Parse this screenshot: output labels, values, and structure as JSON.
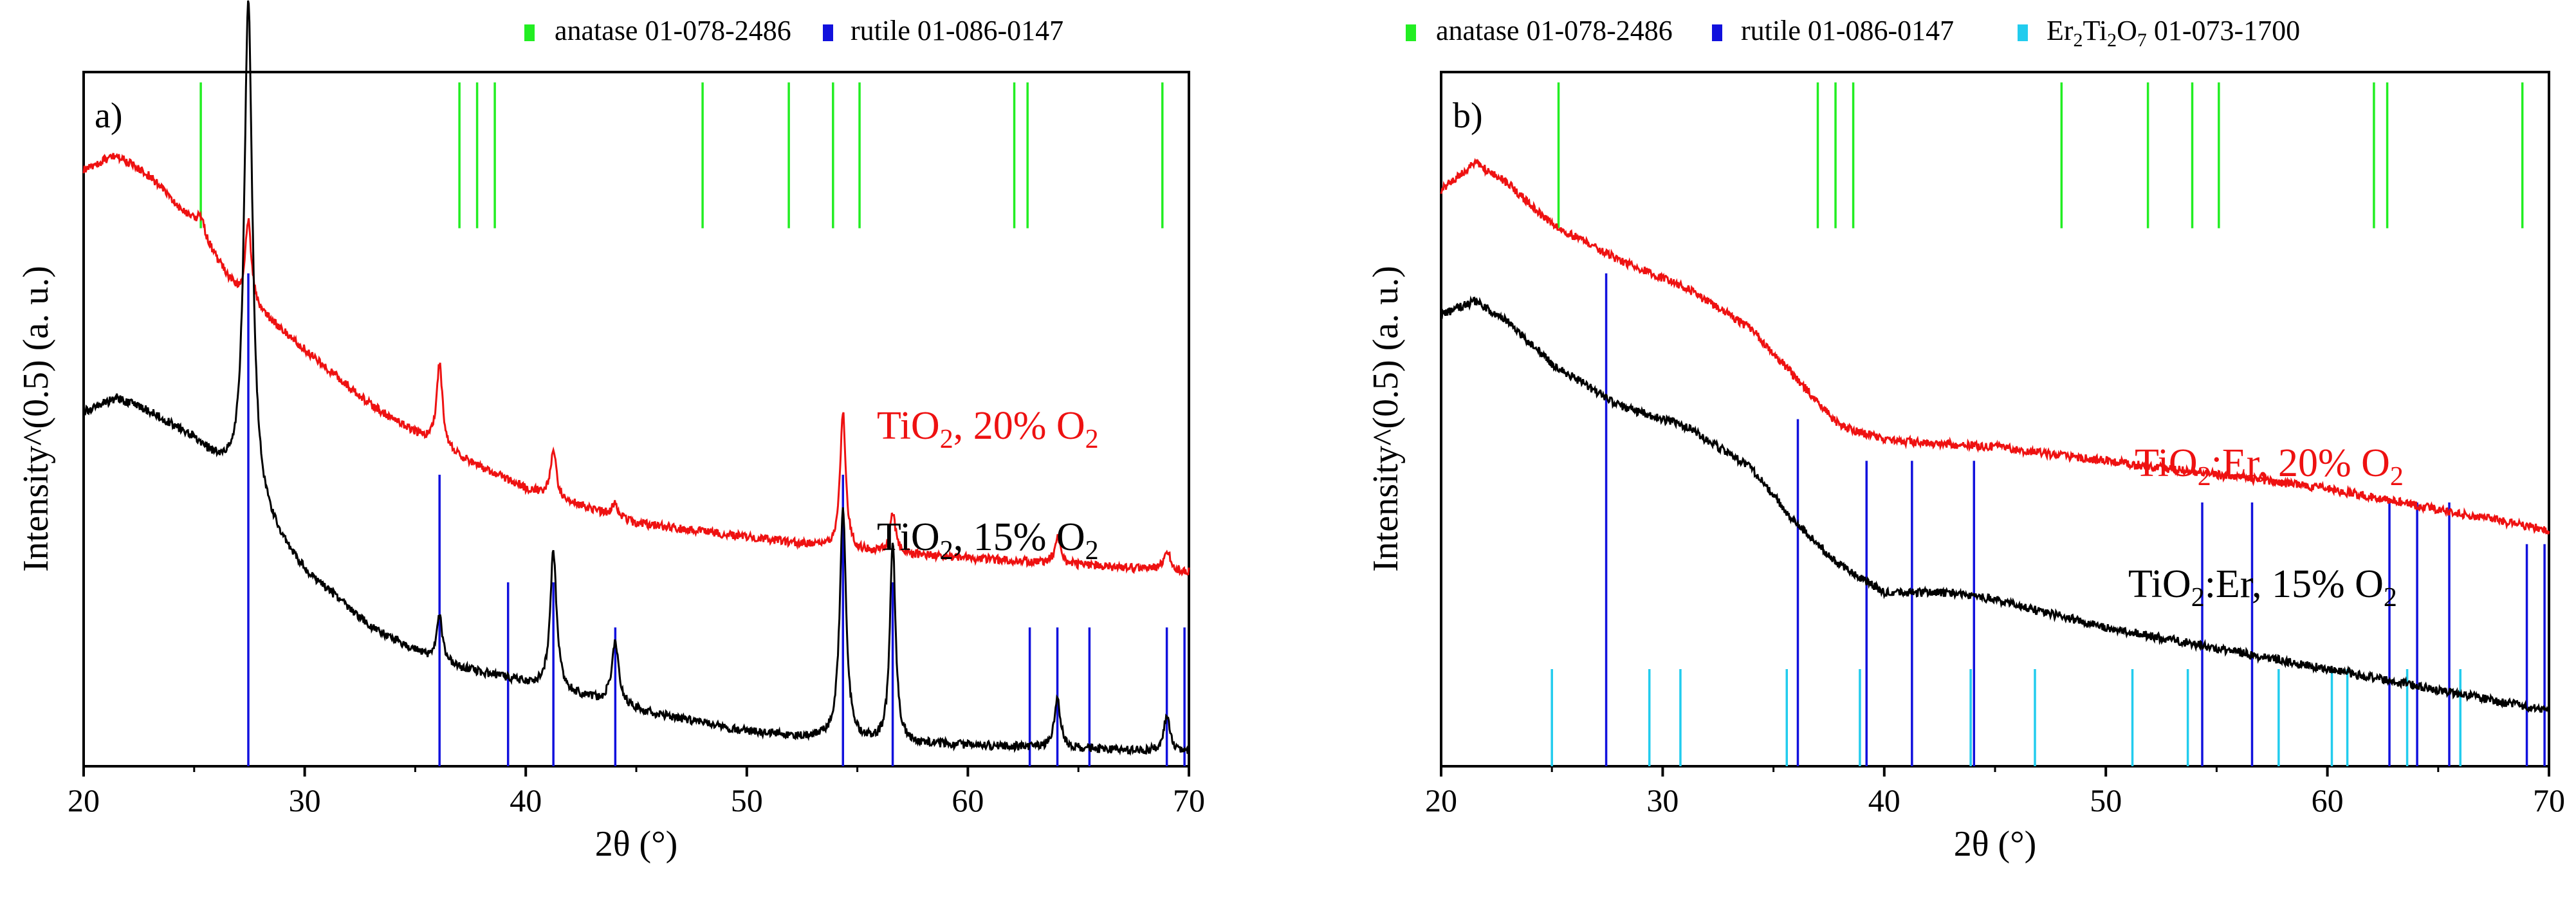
{
  "colors": {
    "anatase": "#22ee22",
    "rutile": "#1111dd",
    "er2ti2o7": "#22ccee",
    "red_series": "#ee1111",
    "black_series": "#000000"
  },
  "chart_data": [
    {
      "type": "line",
      "panel_label": "a)",
      "xlabel": "2θ (°)",
      "ylabel": "Intensity^(0.5) (a. u.)",
      "xlim": [
        20,
        70
      ],
      "ylim": [
        0,
        1
      ],
      "x_ticks": [
        20,
        30,
        40,
        50,
        60,
        70
      ],
      "legend": [
        {
          "name": "anatase 01-078-2486",
          "color": "#22ee22"
        },
        {
          "name": "rutile 01-086-0147",
          "color": "#1111dd"
        }
      ],
      "reference_lines": {
        "anatase": {
          "positions": [
            25.3,
            37.0,
            37.8,
            38.6,
            48.0,
            51.9,
            53.9,
            55.1,
            62.1,
            62.7,
            68.8
          ],
          "ymin": 0.775,
          "ymax": 0.985
        },
        "rutile": {
          "positions": [
            27.45,
            36.1,
            39.2,
            41.25,
            44.05,
            54.35,
            56.6,
            62.8,
            64.05,
            65.5,
            69.0,
            69.8
          ],
          "heights": [
            0.71,
            0.42,
            0.265,
            0.265,
            0.2,
            0.42,
            0.265,
            0.2,
            0.2,
            0.2,
            0.2,
            0.2
          ]
        }
      },
      "series": [
        {
          "name": "TiO2, 20% O2",
          "label_main": "TiO",
          "label_sub1": "2",
          "label_mid": ", 20% O",
          "label_sub2": "2",
          "color": "#ee1111",
          "baseline": [
            [
              20,
              0.86
            ],
            [
              21.5,
              0.88
            ],
            [
              23,
              0.85
            ],
            [
              25,
              0.78
            ],
            [
              27,
              0.68
            ],
            [
              30,
              0.6
            ],
            [
              33,
              0.52
            ],
            [
              36,
              0.46
            ],
            [
              40,
              0.4
            ],
            [
              45,
              0.35
            ],
            [
              50,
              0.33
            ],
            [
              55,
              0.31
            ],
            [
              60,
              0.3
            ],
            [
              65,
              0.29
            ],
            [
              70,
              0.28
            ]
          ],
          "peaks": [
            [
              25.3,
              0.025,
              0.5
            ],
            [
              27.45,
              0.12,
              0.33
            ],
            [
              36.1,
              0.12,
              0.33
            ],
            [
              41.25,
              0.07,
              0.3
            ],
            [
              44.05,
              0.02,
              0.3
            ],
            [
              54.35,
              0.2,
              0.3
            ],
            [
              56.6,
              0.06,
              0.3
            ],
            [
              64.05,
              0.04,
              0.3
            ],
            [
              69.0,
              0.03,
              0.35
            ]
          ]
        },
        {
          "name": "TiO2, 15% O2",
          "label_main": "TiO",
          "label_sub1": "2",
          "label_mid": ", 15% O",
          "label_sub2": "2",
          "color": "#000000",
          "baseline": [
            [
              20,
              0.51
            ],
            [
              21.5,
              0.53
            ],
            [
              23,
              0.51
            ],
            [
              25,
              0.47
            ],
            [
              26.5,
              0.42
            ],
            [
              30,
              0.28
            ],
            [
              33,
              0.2
            ],
            [
              36,
              0.15
            ],
            [
              40,
              0.12
            ],
            [
              45,
              0.08
            ],
            [
              50,
              0.05
            ],
            [
              55,
              0.035
            ],
            [
              60,
              0.03
            ],
            [
              65,
              0.025
            ],
            [
              70,
              0.02
            ]
          ],
          "peaks": [
            [
              27.45,
              0.72,
              0.45
            ],
            [
              36.1,
              0.07,
              0.3
            ],
            [
              41.25,
              0.2,
              0.35
            ],
            [
              44.05,
              0.09,
              0.4
            ],
            [
              54.35,
              0.33,
              0.35
            ],
            [
              56.6,
              0.29,
              0.3
            ],
            [
              64.05,
              0.07,
              0.35
            ],
            [
              69.0,
              0.05,
              0.35
            ]
          ]
        }
      ]
    },
    {
      "type": "line",
      "panel_label": "b)",
      "xlabel": "2θ (°)",
      "ylabel": "Intensity^(0.5) (a. u.)",
      "xlim": [
        20,
        70
      ],
      "ylim": [
        0,
        1
      ],
      "x_ticks": [
        20,
        30,
        40,
        50,
        60,
        70
      ],
      "legend": [
        {
          "name": "anatase 01-078-2486",
          "color": "#22ee22"
        },
        {
          "name": "rutile 01-086-0147",
          "color": "#1111dd"
        },
        {
          "name": "Er2Ti2O7 01-073-1700",
          "label_main": "Er",
          "label_sub1": "2",
          "label_mid": "Ti",
          "label_sub2": "2",
          "label_mid2": "O",
          "label_sub3": "7",
          "label_tail": " 01-073-1700",
          "color": "#22ccee"
        }
      ],
      "reference_lines": {
        "anatase": {
          "positions": [
            25.3,
            37.0,
            37.8,
            38.6,
            48.0,
            51.9,
            53.9,
            55.1,
            62.1,
            62.7,
            68.8
          ],
          "ymin": 0.775,
          "ymax": 0.985
        },
        "rutile": {
          "positions": [
            27.45,
            36.1,
            39.2,
            41.25,
            44.05,
            54.35,
            56.6,
            62.8,
            64.05,
            65.5,
            69.0,
            69.8
          ],
          "heights": [
            0.71,
            0.5,
            0.44,
            0.44,
            0.44,
            0.38,
            0.38,
            0.38,
            0.38,
            0.38,
            0.32,
            0.32
          ]
        },
        "er2ti2o7": {
          "positions": [
            25.0,
            29.4,
            30.8,
            35.6,
            38.9,
            43.9,
            46.8,
            51.2,
            53.7,
            57.8,
            60.2,
            60.9,
            63.6,
            66.0
          ],
          "height": 0.14
        }
      },
      "series": [
        {
          "name": "TiO2:Er, 20% O2",
          "label_main": "TiO",
          "label_sub1": "2",
          "label_mid": ":Er, 20% O",
          "label_sub2": "2",
          "color": "#ee1111",
          "baseline": [
            [
              20,
              0.83
            ],
            [
              21.5,
              0.87
            ],
            [
              23,
              0.84
            ],
            [
              25,
              0.78
            ],
            [
              28,
              0.73
            ],
            [
              31,
              0.69
            ],
            [
              34,
              0.63
            ],
            [
              36,
              0.56
            ],
            [
              38,
              0.49
            ],
            [
              40,
              0.47
            ],
            [
              45,
              0.46
            ],
            [
              50,
              0.44
            ],
            [
              55,
              0.42
            ],
            [
              60,
              0.4
            ],
            [
              65,
              0.37
            ],
            [
              70,
              0.34
            ]
          ],
          "peaks": []
        },
        {
          "name": "TiO2:Er, 15% O2",
          "label_main": "TiO",
          "label_sub1": "2",
          "label_mid": ":Er, 15% O",
          "label_sub2": "2",
          "color": "#000000",
          "baseline": [
            [
              20,
              0.65
            ],
            [
              21.5,
              0.67
            ],
            [
              23,
              0.64
            ],
            [
              25,
              0.58
            ],
            [
              28,
              0.52
            ],
            [
              31,
              0.49
            ],
            [
              34,
              0.43
            ],
            [
              36,
              0.35
            ],
            [
              38,
              0.29
            ],
            [
              40,
              0.25
            ],
            [
              43,
              0.25
            ],
            [
              45,
              0.24
            ],
            [
              50,
              0.2
            ],
            [
              55,
              0.17
            ],
            [
              60,
              0.14
            ],
            [
              65,
              0.11
            ],
            [
              70,
              0.08
            ]
          ],
          "peaks": []
        }
      ]
    }
  ]
}
